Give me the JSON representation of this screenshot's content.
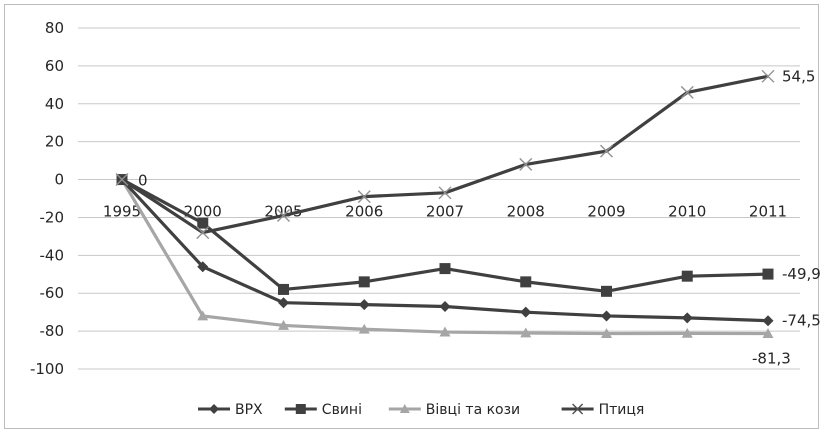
{
  "chart_data": {
    "type": "line",
    "title": "",
    "xlabel": "",
    "ylabel": "",
    "categories": [
      "1995",
      "2000",
      "2005",
      "2006",
      "2007",
      "2008",
      "2009",
      "2010",
      "2011"
    ],
    "ylim": [
      -100,
      80
    ],
    "yticks": [
      "80",
      "60",
      "40",
      "20",
      "0",
      "-20",
      "-40",
      "-60",
      "-80",
      "-100"
    ],
    "grid": true,
    "legend_position": "bottom",
    "series": [
      {
        "name": "ВРХ",
        "marker": "diamond",
        "color": "#404040",
        "values": [
          0,
          -46,
          -65,
          -66,
          -67,
          -70,
          -72,
          -73,
          -74.5
        ]
      },
      {
        "name": "Свині",
        "marker": "square",
        "color": "#404040",
        "values": [
          0,
          -23,
          -58,
          -54,
          -47,
          -54,
          -59,
          -51,
          -49.9
        ]
      },
      {
        "name": "Вівці та кози",
        "marker": "triangle",
        "color": "#a6a6a6",
        "values": [
          0,
          -72,
          -77,
          -79,
          -80.5,
          -81,
          -81.3,
          -81.2,
          -81.3
        ]
      },
      {
        "name": "Птиця",
        "marker": "x",
        "color": "#404040",
        "values": [
          0,
          -28,
          -19,
          -9,
          -7,
          8,
          15,
          46,
          54.5
        ]
      }
    ],
    "annotations": [
      {
        "text": "0",
        "series": 0,
        "index": 0
      },
      {
        "text": "54,5",
        "series": 3,
        "index": 8
      },
      {
        "text": "-49,9",
        "series": 1,
        "index": 8
      },
      {
        "text": "-74,5",
        "series": 0,
        "index": 8
      },
      {
        "text": "-81,3",
        "series": 2,
        "index": 8
      }
    ]
  }
}
